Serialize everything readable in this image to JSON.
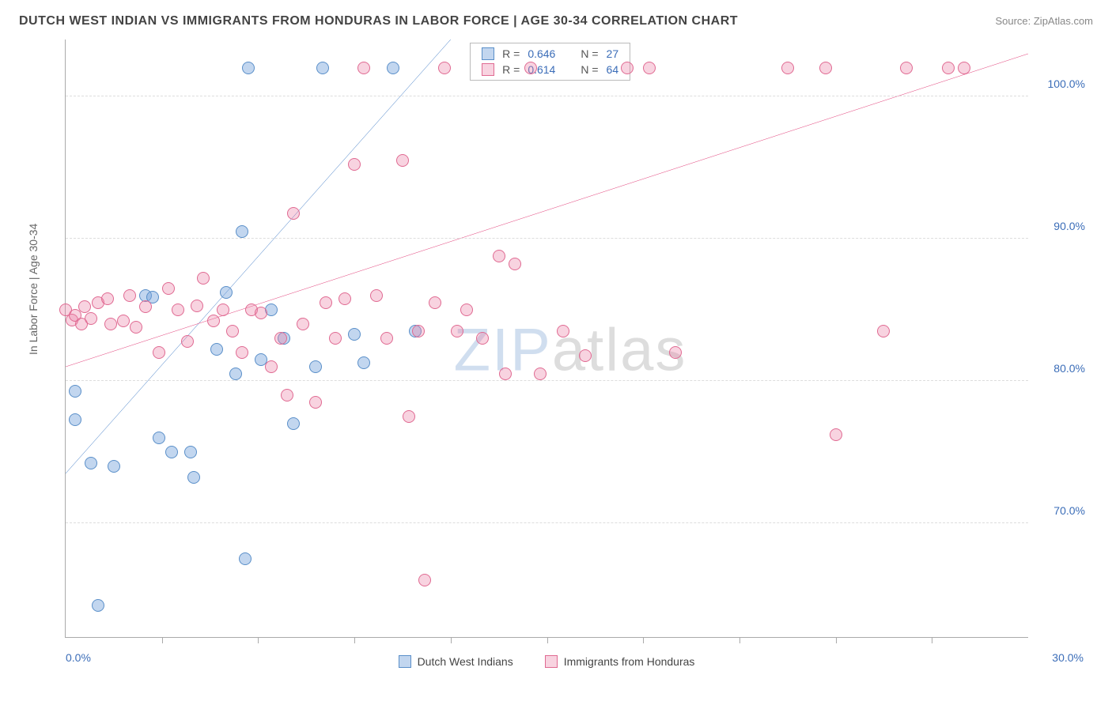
{
  "title": "DUTCH WEST INDIAN VS IMMIGRANTS FROM HONDURAS IN LABOR FORCE | AGE 30-34 CORRELATION CHART",
  "source": "Source: ZipAtlas.com",
  "watermark_a": "ZIP",
  "watermark_b": "atlas",
  "chart": {
    "type": "scatter",
    "y_axis_label": "In Labor Force | Age 30-34",
    "xlim": [
      0,
      30
    ],
    "ylim": [
      62,
      104
    ],
    "x_ticks": [
      3,
      6,
      9,
      12,
      15,
      18,
      21,
      24,
      27
    ],
    "x_min_label": "0.0%",
    "x_max_label": "30.0%",
    "y_ticks": [
      {
        "v": 70,
        "label": "70.0%"
      },
      {
        "v": 80,
        "label": "80.0%"
      },
      {
        "v": 90,
        "label": "90.0%"
      },
      {
        "v": 100,
        "label": "100.0%"
      }
    ],
    "grid_color": "#dddddd",
    "background_color": "#ffffff",
    "axis_color": "#aaaaaa",
    "tick_label_color": "#3b6db8",
    "label_fontsize": 14,
    "title_fontsize": 16,
    "marker_size": 16,
    "series": [
      {
        "name": "Dutch West Indians",
        "fill": "rgba(120,165,220,0.45)",
        "stroke": "#5a8fc9",
        "line_color": "#2e6fc0",
        "line_width": 2,
        "R": "0.646",
        "N": "27",
        "trend": {
          "x1": 0,
          "y1": 73.5,
          "x2": 12,
          "y2": 104
        },
        "points": [
          {
            "x": 0.3,
            "y": 79.3
          },
          {
            "x": 0.3,
            "y": 77.3
          },
          {
            "x": 0.8,
            "y": 74.2
          },
          {
            "x": 1.0,
            "y": 64.2
          },
          {
            "x": 1.5,
            "y": 74.0
          },
          {
            "x": 2.5,
            "y": 86.0
          },
          {
            "x": 2.7,
            "y": 85.9
          },
          {
            "x": 2.9,
            "y": 76.0
          },
          {
            "x": 3.3,
            "y": 75.0
          },
          {
            "x": 3.9,
            "y": 75.0
          },
          {
            "x": 4.0,
            "y": 73.2
          },
          {
            "x": 4.7,
            "y": 82.2
          },
          {
            "x": 5.0,
            "y": 86.2
          },
          {
            "x": 5.3,
            "y": 80.5
          },
          {
            "x": 5.5,
            "y": 90.5
          },
          {
            "x": 5.6,
            "y": 67.5
          },
          {
            "x": 5.7,
            "y": 102.0
          },
          {
            "x": 6.1,
            "y": 81.5
          },
          {
            "x": 6.4,
            "y": 85.0
          },
          {
            "x": 6.8,
            "y": 83.0
          },
          {
            "x": 7.1,
            "y": 77.0
          },
          {
            "x": 7.8,
            "y": 81.0
          },
          {
            "x": 8.0,
            "y": 102.0
          },
          {
            "x": 9.0,
            "y": 83.3
          },
          {
            "x": 9.3,
            "y": 81.3
          },
          {
            "x": 10.2,
            "y": 102.0
          },
          {
            "x": 10.9,
            "y": 83.5
          }
        ]
      },
      {
        "name": "Immigrants from Honduras",
        "fill": "rgba(235,130,165,0.35)",
        "stroke": "#e06a92",
        "line_color": "#e23d78",
        "line_width": 2,
        "R": "0.614",
        "N": "64",
        "trend": {
          "x1": 0,
          "y1": 81,
          "x2": 30,
          "y2": 103
        },
        "points": [
          {
            "x": 0.0,
            "y": 85.0
          },
          {
            "x": 0.2,
            "y": 84.3
          },
          {
            "x": 0.3,
            "y": 84.6
          },
          {
            "x": 0.5,
            "y": 84.0
          },
          {
            "x": 0.6,
            "y": 85.2
          },
          {
            "x": 0.8,
            "y": 84.4
          },
          {
            "x": 1.0,
            "y": 85.5
          },
          {
            "x": 1.3,
            "y": 85.8
          },
          {
            "x": 1.4,
            "y": 84.0
          },
          {
            "x": 1.8,
            "y": 84.2
          },
          {
            "x": 2.0,
            "y": 86.0
          },
          {
            "x": 2.2,
            "y": 83.8
          },
          {
            "x": 2.5,
            "y": 85.2
          },
          {
            "x": 2.9,
            "y": 82.0
          },
          {
            "x": 3.2,
            "y": 86.5
          },
          {
            "x": 3.5,
            "y": 85.0
          },
          {
            "x": 3.8,
            "y": 82.8
          },
          {
            "x": 4.1,
            "y": 85.3
          },
          {
            "x": 4.3,
            "y": 87.2
          },
          {
            "x": 4.6,
            "y": 84.2
          },
          {
            "x": 4.9,
            "y": 85.0
          },
          {
            "x": 5.2,
            "y": 83.5
          },
          {
            "x": 5.5,
            "y": 82.0
          },
          {
            "x": 5.8,
            "y": 85.0
          },
          {
            "x": 6.1,
            "y": 84.8
          },
          {
            "x": 6.4,
            "y": 81.0
          },
          {
            "x": 6.7,
            "y": 83.0
          },
          {
            "x": 6.9,
            "y": 79.0
          },
          {
            "x": 7.1,
            "y": 91.8
          },
          {
            "x": 7.4,
            "y": 84.0
          },
          {
            "x": 7.8,
            "y": 78.5
          },
          {
            "x": 8.1,
            "y": 85.5
          },
          {
            "x": 8.4,
            "y": 83.0
          },
          {
            "x": 8.7,
            "y": 85.8
          },
          {
            "x": 9.0,
            "y": 95.2
          },
          {
            "x": 9.3,
            "y": 102.0
          },
          {
            "x": 9.7,
            "y": 86.0
          },
          {
            "x": 10.0,
            "y": 83.0
          },
          {
            "x": 10.5,
            "y": 95.5
          },
          {
            "x": 10.7,
            "y": 77.5
          },
          {
            "x": 11.0,
            "y": 83.5
          },
          {
            "x": 11.2,
            "y": 66.0
          },
          {
            "x": 11.5,
            "y": 85.5
          },
          {
            "x": 11.8,
            "y": 102.0
          },
          {
            "x": 12.2,
            "y": 83.5
          },
          {
            "x": 12.5,
            "y": 85.0
          },
          {
            "x": 13.0,
            "y": 83.0
          },
          {
            "x": 13.5,
            "y": 88.8
          },
          {
            "x": 13.7,
            "y": 80.5
          },
          {
            "x": 14.0,
            "y": 88.2
          },
          {
            "x": 14.5,
            "y": 102.0
          },
          {
            "x": 14.8,
            "y": 80.5
          },
          {
            "x": 15.5,
            "y": 83.5
          },
          {
            "x": 16.2,
            "y": 81.8
          },
          {
            "x": 17.5,
            "y": 102.0
          },
          {
            "x": 18.2,
            "y": 102.0
          },
          {
            "x": 19.0,
            "y": 82.0
          },
          {
            "x": 22.5,
            "y": 102.0
          },
          {
            "x": 23.7,
            "y": 102.0
          },
          {
            "x": 24.0,
            "y": 76.2
          },
          {
            "x": 25.5,
            "y": 83.5
          },
          {
            "x": 26.2,
            "y": 102.0
          },
          {
            "x": 27.5,
            "y": 102.0
          },
          {
            "x": 28.0,
            "y": 102.0
          }
        ]
      }
    ]
  },
  "stats_box": {
    "rows": [
      {
        "swatch_fill": "rgba(120,165,220,0.45)",
        "swatch_stroke": "#5a8fc9",
        "R_label": "R =",
        "R": "0.646",
        "N_label": "N =",
        "N": "27"
      },
      {
        "swatch_fill": "rgba(235,130,165,0.35)",
        "swatch_stroke": "#e06a92",
        "R_label": "R =",
        "R": "0.614",
        "N_label": "N =",
        "N": "64"
      }
    ]
  },
  "legend": [
    {
      "swatch_fill": "rgba(120,165,220,0.45)",
      "swatch_stroke": "#5a8fc9",
      "label": "Dutch West Indians"
    },
    {
      "swatch_fill": "rgba(235,130,165,0.35)",
      "swatch_stroke": "#e06a92",
      "label": "Immigrants from Honduras"
    }
  ]
}
